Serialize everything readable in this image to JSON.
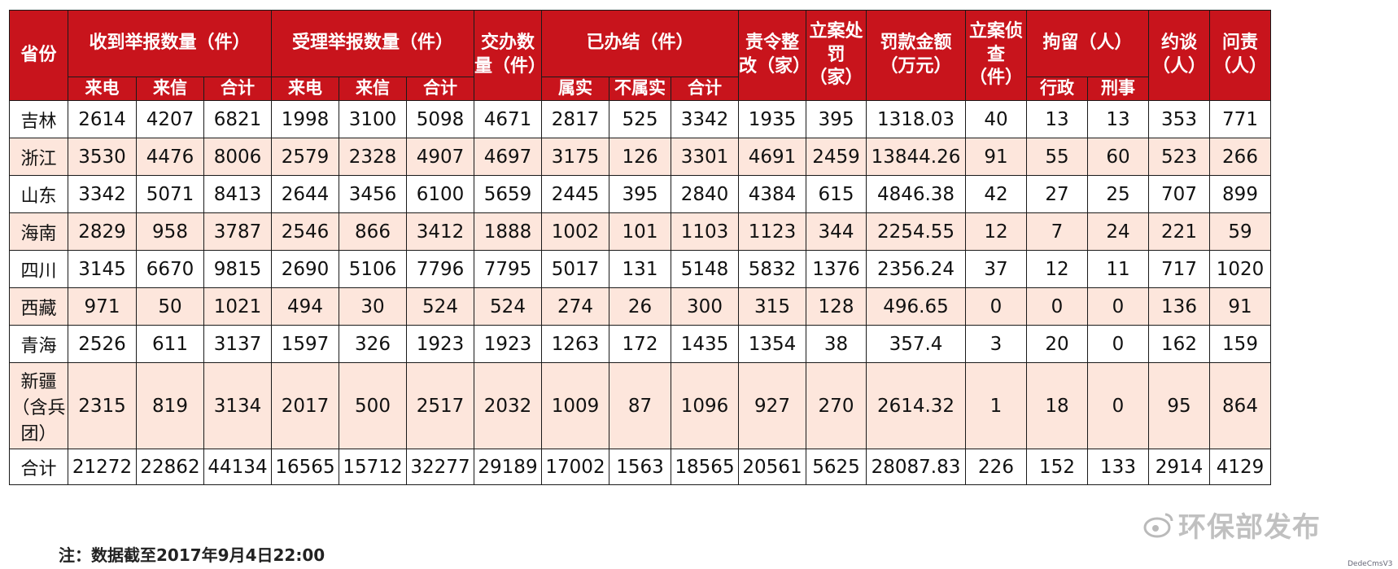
{
  "headers": {
    "province": "省份",
    "received": "收到举报数量（件）",
    "accepted": "受理举报数量（件）",
    "assigned": "交办数量（件）",
    "concluded": "已办结（件）",
    "rectify": "责令整改（家）",
    "punish": "立案处罚（家）",
    "fine": "罚款金额（万元）",
    "investigate": "立案侦查（件）",
    "detain": "拘留（人）",
    "interview": "约谈（人）",
    "accountability": "问责（人）",
    "sub_call": "来电",
    "sub_letter": "来信",
    "sub_total": "合计",
    "sub_true": "属实",
    "sub_false": "不属实",
    "sub_admin": "行政",
    "sub_criminal": "刑事"
  },
  "rows": [
    {
      "province": "吉林",
      "cells": [
        "2614",
        "4207",
        "6821",
        "1998",
        "3100",
        "5098",
        "4671",
        "2817",
        "525",
        "3342",
        "1935",
        "395",
        "1318.03",
        "40",
        "13",
        "13",
        "353",
        "771"
      ]
    },
    {
      "province": "浙江",
      "cells": [
        "3530",
        "4476",
        "8006",
        "2579",
        "2328",
        "4907",
        "4697",
        "3175",
        "126",
        "3301",
        "4691",
        "2459",
        "13844.26",
        "91",
        "55",
        "60",
        "523",
        "266"
      ]
    },
    {
      "province": "山东",
      "cells": [
        "3342",
        "5071",
        "8413",
        "2644",
        "3456",
        "6100",
        "5659",
        "2445",
        "395",
        "2840",
        "4384",
        "615",
        "4846.38",
        "42",
        "27",
        "25",
        "707",
        "899"
      ]
    },
    {
      "province": "海南",
      "cells": [
        "2829",
        "958",
        "3787",
        "2546",
        "866",
        "3412",
        "1888",
        "1002",
        "101",
        "1103",
        "1123",
        "344",
        "2254.55",
        "12",
        "7",
        "24",
        "221",
        "59"
      ]
    },
    {
      "province": "四川",
      "cells": [
        "3145",
        "6670",
        "9815",
        "2690",
        "5106",
        "7796",
        "7795",
        "5017",
        "131",
        "5148",
        "5832",
        "1376",
        "2356.24",
        "37",
        "12",
        "11",
        "717",
        "1020"
      ]
    },
    {
      "province": "西藏",
      "cells": [
        "971",
        "50",
        "1021",
        "494",
        "30",
        "524",
        "524",
        "274",
        "26",
        "300",
        "315",
        "128",
        "496.65",
        "0",
        "0",
        "0",
        "136",
        "91"
      ]
    },
    {
      "province": "青海",
      "cells": [
        "2526",
        "611",
        "3137",
        "1597",
        "326",
        "1923",
        "1923",
        "1263",
        "172",
        "1435",
        "1354",
        "38",
        "357.4",
        "3",
        "20",
        "0",
        "162",
        "159"
      ]
    },
    {
      "province": "新疆（含兵团）",
      "cells": [
        "2315",
        "819",
        "3134",
        "2017",
        "500",
        "2517",
        "2032",
        "1009",
        "87",
        "1096",
        "927",
        "270",
        "2614.32",
        "1",
        "18",
        "0",
        "95",
        "864"
      ]
    }
  ],
  "total": {
    "province": "合计",
    "cells": [
      "21272",
      "22862",
      "44134",
      "16565",
      "15712",
      "32277",
      "29189",
      "17002",
      "1563",
      "18565",
      "20561",
      "5625",
      "28087.83",
      "226",
      "152",
      "133",
      "2914",
      "4129"
    ]
  },
  "note": "注：数据截至2017年9月4日22:00",
  "watermark": "环保部发布",
  "badge": "DedeCmsV3",
  "colors": {
    "header_bg": "#c8141c",
    "even_row_bg": "#fde6dc"
  }
}
